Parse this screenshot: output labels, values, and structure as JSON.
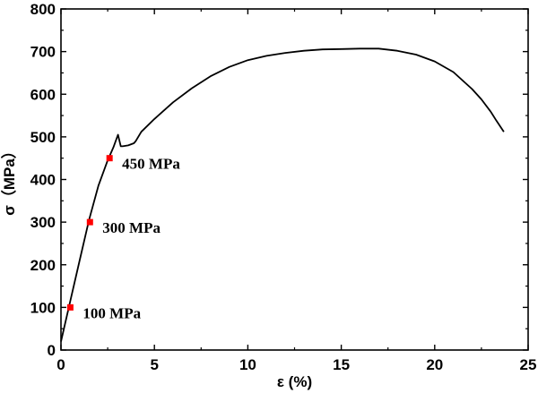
{
  "chart_data": {
    "type": "line",
    "xlabel": "ε (%)",
    "ylabel": "σ（MPa）",
    "xlim": [
      0,
      25
    ],
    "ylim": [
      0,
      800
    ],
    "x_ticks": [
      0,
      5,
      10,
      15,
      20,
      25
    ],
    "y_ticks": [
      0,
      100,
      200,
      300,
      400,
      500,
      600,
      700,
      800
    ],
    "grid": false,
    "series": [
      {
        "x": [
          0.0,
          0.5,
          1.0,
          1.5,
          2.0,
          2.5,
          2.8,
          3.05,
          3.2,
          3.3,
          3.6,
          3.9,
          4.0,
          4.3,
          5.0,
          6.0,
          7.0,
          8.0,
          9.0,
          10.0,
          11.0,
          12.0,
          13.0,
          14.0,
          15.0,
          16.0,
          17.0,
          18.0,
          19.0,
          20.0,
          21.0,
          22.0,
          22.5,
          23.0,
          23.3,
          23.7
        ],
        "y": [
          20,
          115,
          210,
          305,
          385,
          445,
          475,
          505,
          478,
          478,
          480,
          485,
          490,
          512,
          542,
          581,
          614,
          642,
          664,
          680,
          690,
          697,
          702,
          705,
          706,
          707,
          707,
          702,
          693,
          677,
          652,
          612,
          588,
          559,
          538,
          512
        ]
      }
    ],
    "markers": [
      {
        "x": 0.5,
        "y": 100,
        "label": "100 MPa"
      },
      {
        "x": 1.55,
        "y": 300,
        "label": "300 MPa"
      },
      {
        "x": 2.6,
        "y": 450,
        "label": "450 MPa"
      }
    ],
    "marker_color": "#ff0000",
    "line_color": "#000000"
  }
}
